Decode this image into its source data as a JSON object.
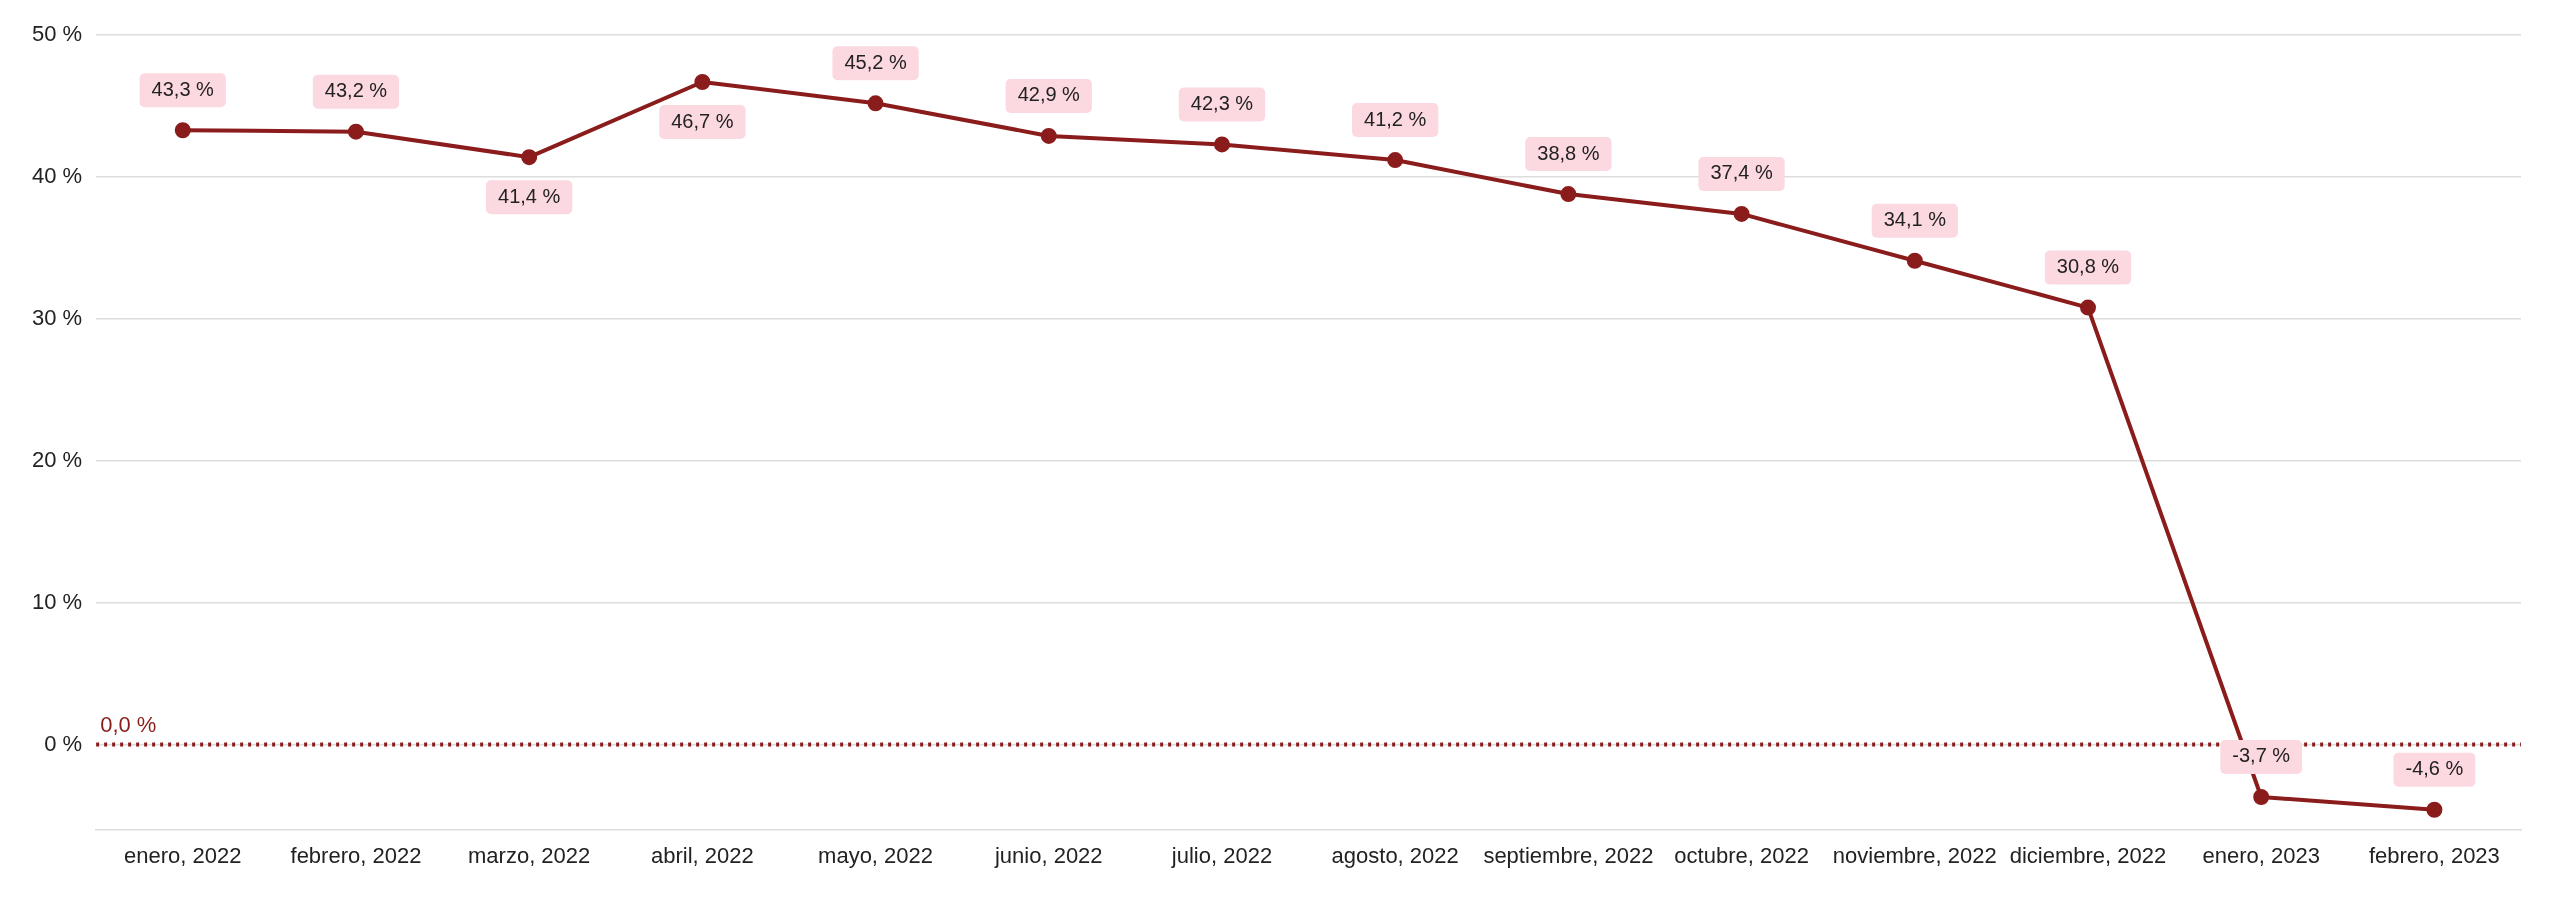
{
  "chart_data": {
    "type": "line",
    "categories": [
      "enero, 2022",
      "febrero, 2022",
      "marzo, 2022",
      "abril, 2022",
      "mayo, 2022",
      "junio, 2022",
      "julio, 2022",
      "agosto, 2022",
      "septiembre, 2022",
      "octubre, 2022",
      "noviembre, 2022",
      "diciembre, 2022",
      "enero, 2023",
      "febrero, 2023"
    ],
    "series": [
      {
        "color": "#8b1c1c",
        "values": [
          43.3,
          43.2,
          41.4,
          46.7,
          45.2,
          42.9,
          42.3,
          41.2,
          38.8,
          37.4,
          34.1,
          30.8,
          -3.7,
          -4.6
        ],
        "value_labels": [
          "43,3 %",
          "43,2 %",
          "41,4 %",
          "46,7 %",
          "45,2 %",
          "42,9 %",
          "42,3 %",
          "41,2 %",
          "38,8 %",
          "37,4 %",
          "34,1 %",
          "30,8 %",
          "-3,7 %",
          "-4,6 %"
        ]
      }
    ],
    "ylim": [
      -6,
      50
    ],
    "yticks": [
      {
        "value": 0,
        "label": "0 %"
      },
      {
        "value": 10,
        "label": "10 %"
      },
      {
        "value": 20,
        "label": "20 %"
      },
      {
        "value": 30,
        "label": "30 %"
      },
      {
        "value": 40,
        "label": "40 %"
      },
      {
        "value": 50,
        "label": "50 %"
      }
    ],
    "grid": "y",
    "marker": "circle",
    "line_style": "solid",
    "legend": false,
    "ref_lines": [
      {
        "axis": "y",
        "value": 0,
        "label": "0,0 %",
        "color": "#8b1c1c",
        "line_style": "dotted"
      }
    ]
  }
}
